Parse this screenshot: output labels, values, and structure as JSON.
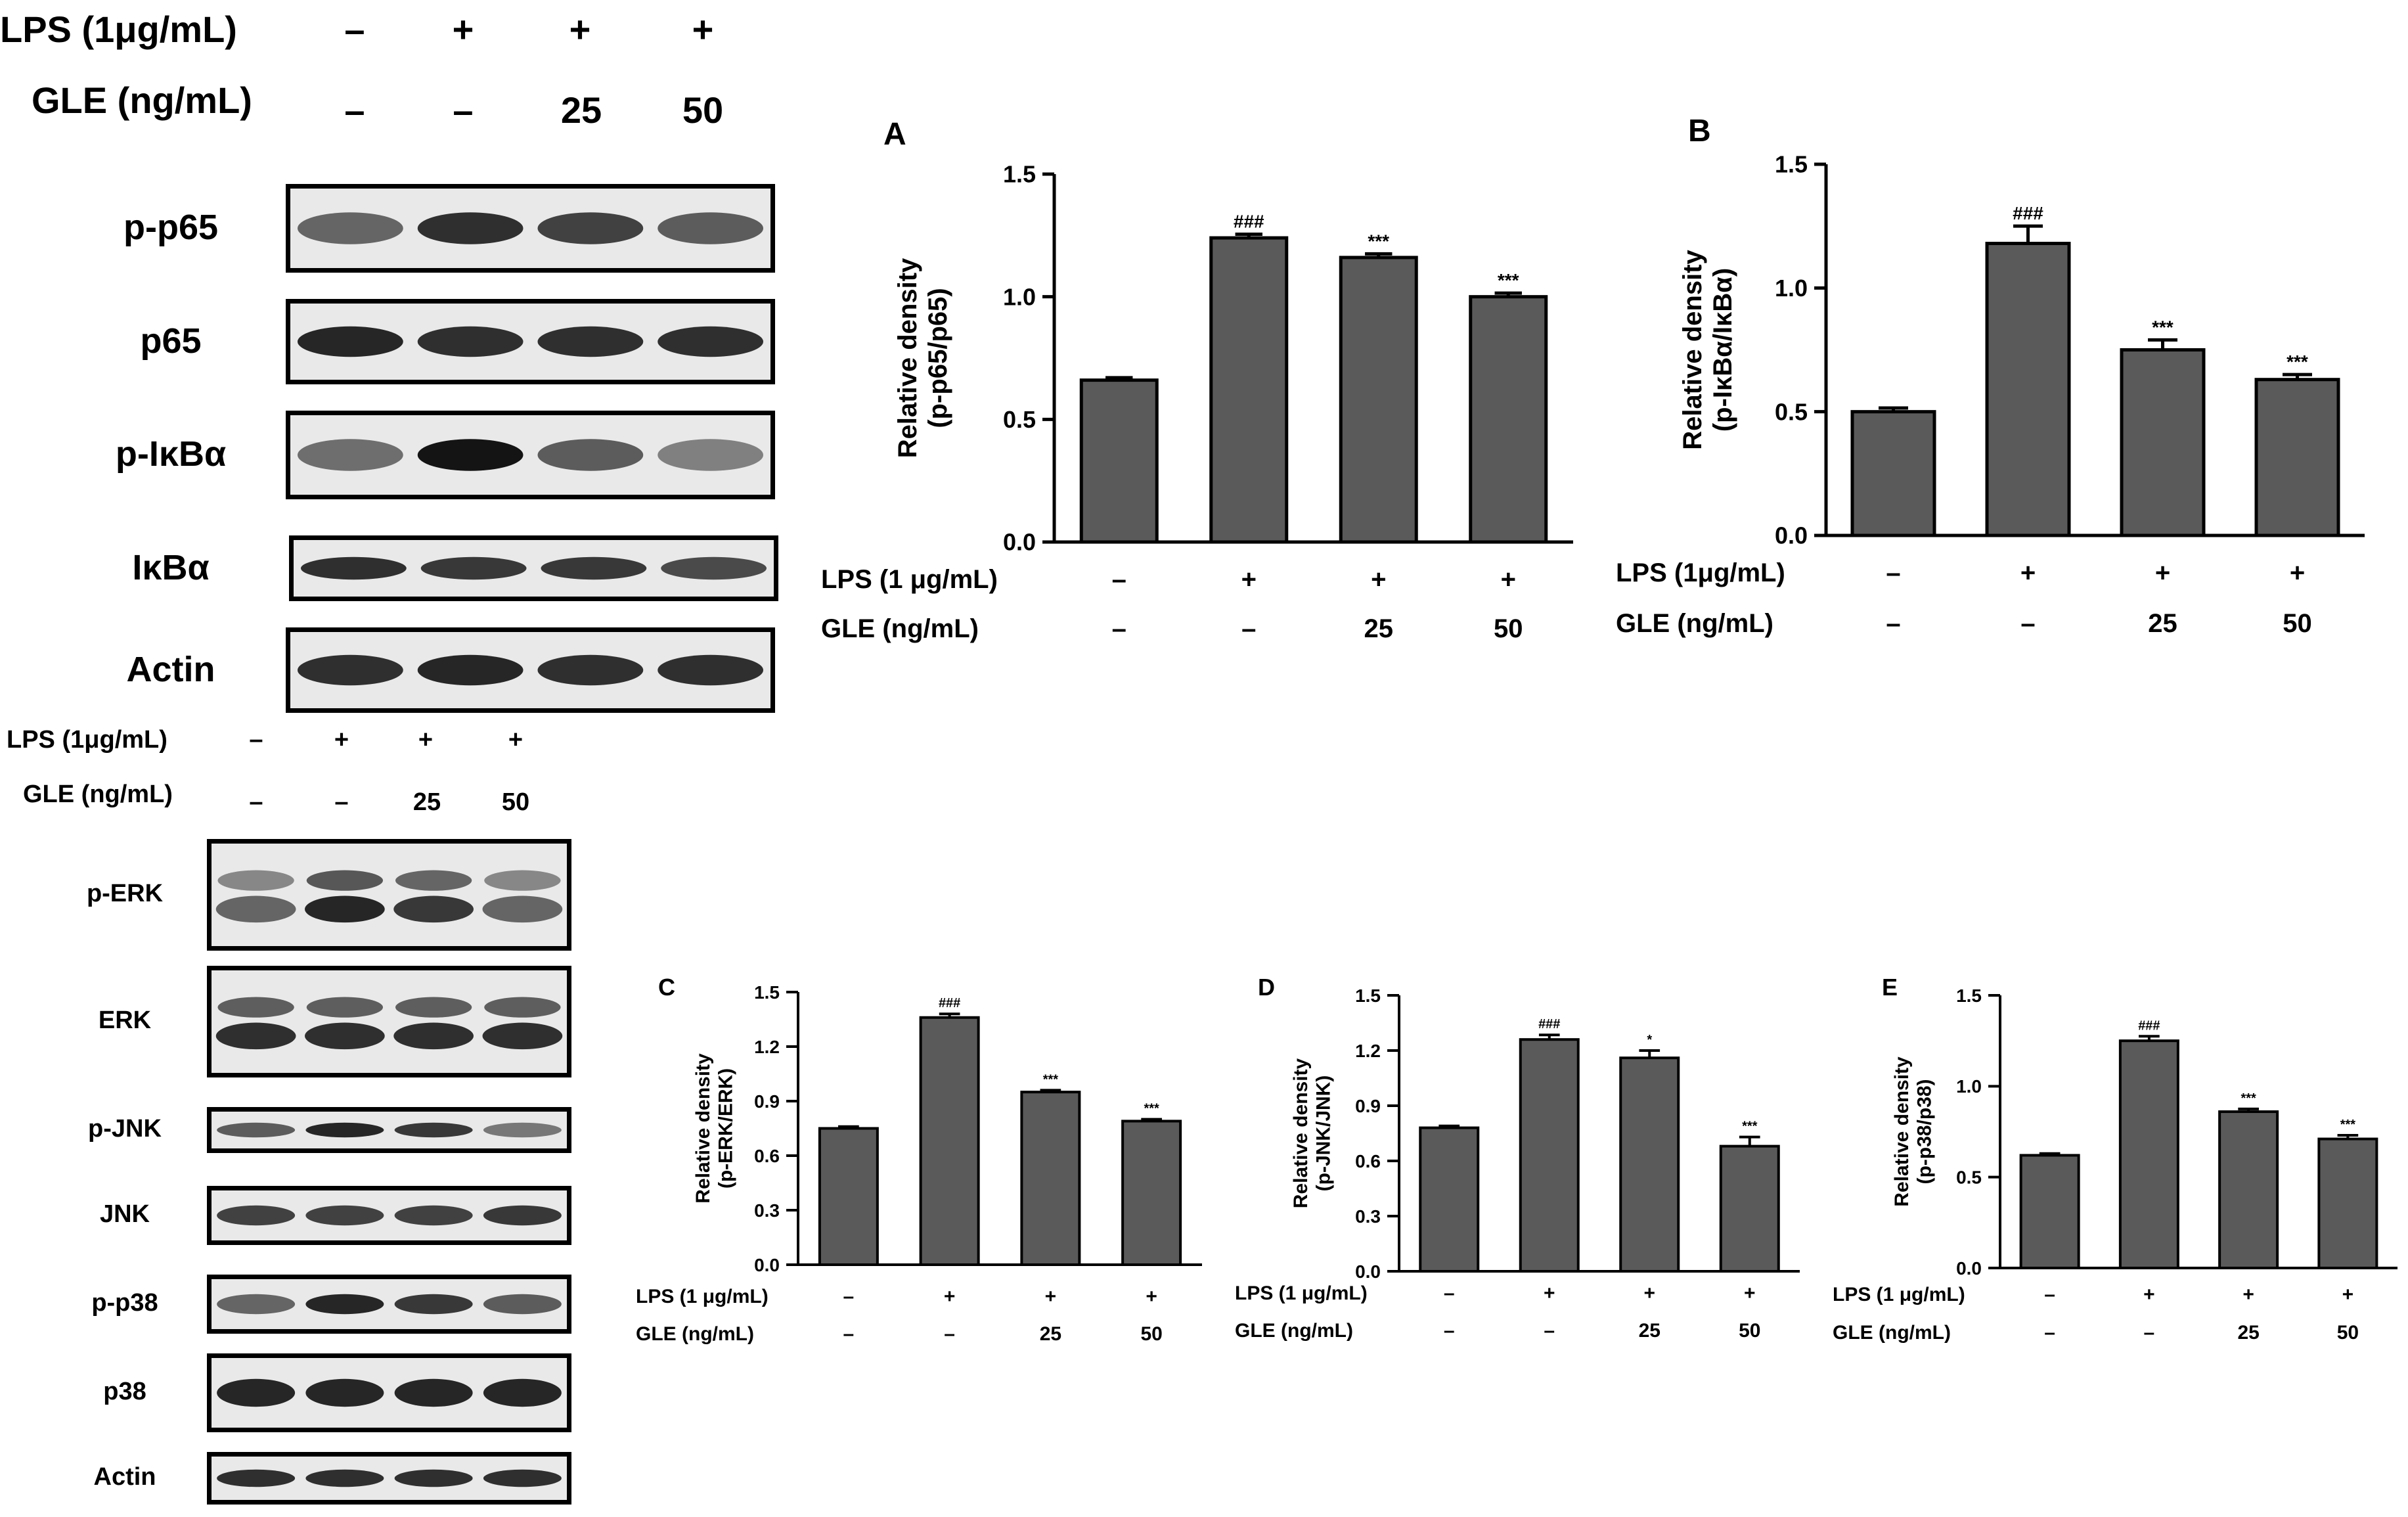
{
  "nfkb_blot": {
    "treatment_rows": [
      {
        "label": "LPS (1μg/mL)",
        "cells": [
          "–",
          "+",
          "+",
          "+"
        ]
      },
      {
        "label": "GLE (ng/mL)",
        "cells": [
          "–",
          "–",
          "25",
          "50"
        ]
      }
    ],
    "bands": [
      {
        "label": "p-p65",
        "intensity": [
          0.55,
          0.85,
          0.75,
          0.6
        ]
      },
      {
        "label": "p65",
        "intensity": [
          0.9,
          0.85,
          0.85,
          0.85
        ]
      },
      {
        "label": "p-IκBα",
        "intensity": [
          0.5,
          1.0,
          0.6,
          0.4
        ]
      },
      {
        "label": "IκBα",
        "intensity": [
          0.85,
          0.8,
          0.8,
          0.7
        ]
      },
      {
        "label": "Actin",
        "intensity": [
          0.85,
          0.9,
          0.85,
          0.85
        ]
      }
    ]
  },
  "mapk_blot": {
    "treatment_rows": [
      {
        "label": "LPS (1μg/mL)",
        "cells": [
          "–",
          "+",
          "+",
          "+"
        ]
      },
      {
        "label": "GLE (ng/mL)",
        "cells": [
          "–",
          "–",
          "25",
          "50"
        ]
      }
    ],
    "bands": [
      {
        "label": "p-ERK",
        "intensity": [
          0.55,
          0.9,
          0.8,
          0.55
        ],
        "double": true
      },
      {
        "label": "ERK",
        "intensity": [
          0.85,
          0.85,
          0.85,
          0.85
        ],
        "double": true
      },
      {
        "label": "p-JNK",
        "intensity": [
          0.6,
          0.9,
          0.8,
          0.45
        ]
      },
      {
        "label": "JNK",
        "intensity": [
          0.75,
          0.75,
          0.75,
          0.8
        ]
      },
      {
        "label": "p-p38",
        "intensity": [
          0.55,
          0.9,
          0.8,
          0.6
        ]
      },
      {
        "label": "p38",
        "intensity": [
          0.9,
          0.9,
          0.9,
          0.9
        ]
      },
      {
        "label": "Actin",
        "intensity": [
          0.85,
          0.85,
          0.85,
          0.85
        ]
      }
    ]
  },
  "chart_data": [
    {
      "panel": "A",
      "type": "bar",
      "ylabel": "Relative density\n(p-p65/p65)",
      "ylim": [
        0,
        1.5
      ],
      "yticks": [
        "0.0",
        "0.5",
        "1.0",
        "1.5"
      ],
      "values": [
        0.66,
        1.24,
        1.16,
        1.0
      ],
      "errors": [
        0.01,
        0.015,
        0.015,
        0.015
      ],
      "annotations": [
        "",
        "###",
        "***",
        "***"
      ],
      "treatment_rows": [
        {
          "label": "LPS (1 μg/mL)",
          "cells": [
            "–",
            "+",
            "+",
            "+"
          ]
        },
        {
          "label": "GLE (ng/mL)",
          "cells": [
            "–",
            "–",
            "25",
            "50"
          ]
        }
      ],
      "bar_color": "#5a5a5a"
    },
    {
      "panel": "B",
      "type": "bar",
      "ylabel": "Relative density\n(p-IκBα/IκBα)",
      "ylim": [
        0,
        1.5
      ],
      "yticks": [
        "0.0",
        "0.5",
        "1.0",
        "1.5"
      ],
      "values": [
        0.5,
        1.18,
        0.75,
        0.63
      ],
      "errors": [
        0.015,
        0.07,
        0.04,
        0.02
      ],
      "annotations": [
        "",
        "###",
        "***",
        "***"
      ],
      "treatment_rows": [
        {
          "label": "LPS (1μg/mL)",
          "cells": [
            "–",
            "+",
            "+",
            "+"
          ]
        },
        {
          "label": "GLE (ng/mL)",
          "cells": [
            "–",
            "–",
            "25",
            "50"
          ]
        }
      ],
      "bar_color": "#5a5a5a"
    },
    {
      "panel": "C",
      "type": "bar",
      "ylabel": "Relative density\n(p-ERK/ERK)",
      "ylim": [
        0,
        1.5
      ],
      "yticks": [
        "0.0",
        "0.3",
        "0.6",
        "0.9",
        "1.2",
        "1.5"
      ],
      "values": [
        0.75,
        1.36,
        0.95,
        0.79
      ],
      "errors": [
        0.01,
        0.02,
        0.01,
        0.01
      ],
      "annotations": [
        "",
        "###",
        "***",
        "***"
      ],
      "treatment_rows": [
        {
          "label": "LPS (1 μg/mL)",
          "cells": [
            "–",
            "+",
            "+",
            "+"
          ]
        },
        {
          "label": "GLE (ng/mL)",
          "cells": [
            "–",
            "–",
            "25",
            "50"
          ]
        }
      ],
      "bar_color": "#5a5a5a"
    },
    {
      "panel": "D",
      "type": "bar",
      "ylabel": "Relative density\n(p-JNK/JNK)",
      "ylim": [
        0,
        1.5
      ],
      "yticks": [
        "0.0",
        "0.3",
        "0.6",
        "0.9",
        "1.2",
        "1.5"
      ],
      "values": [
        0.78,
        1.26,
        1.16,
        0.68
      ],
      "errors": [
        0.01,
        0.025,
        0.04,
        0.05
      ],
      "annotations": [
        "",
        "###",
        "*",
        "***"
      ],
      "treatment_rows": [
        {
          "label": "LPS (1 μg/mL)",
          "cells": [
            "–",
            "+",
            "+",
            "+"
          ]
        },
        {
          "label": "GLE (ng/mL)",
          "cells": [
            "–",
            "–",
            "25",
            "50"
          ]
        }
      ],
      "bar_color": "#5a5a5a"
    },
    {
      "panel": "E",
      "type": "bar",
      "ylabel": "Relative density\n(p-p38/p38)",
      "ylim": [
        0,
        1.5
      ],
      "yticks": [
        "0.0",
        "0.5",
        "1.0",
        "1.5"
      ],
      "values": [
        0.62,
        1.25,
        0.86,
        0.71
      ],
      "errors": [
        0.01,
        0.025,
        0.015,
        0.02
      ],
      "annotations": [
        "",
        "###",
        "***",
        "***"
      ],
      "treatment_rows": [
        {
          "label": "LPS (1 μg/mL)",
          "cells": [
            "–",
            "+",
            "+",
            "+"
          ]
        },
        {
          "label": "GLE (ng/mL)",
          "cells": [
            "–",
            "–",
            "25",
            "50"
          ]
        }
      ],
      "bar_color": "#5a5a5a"
    }
  ]
}
